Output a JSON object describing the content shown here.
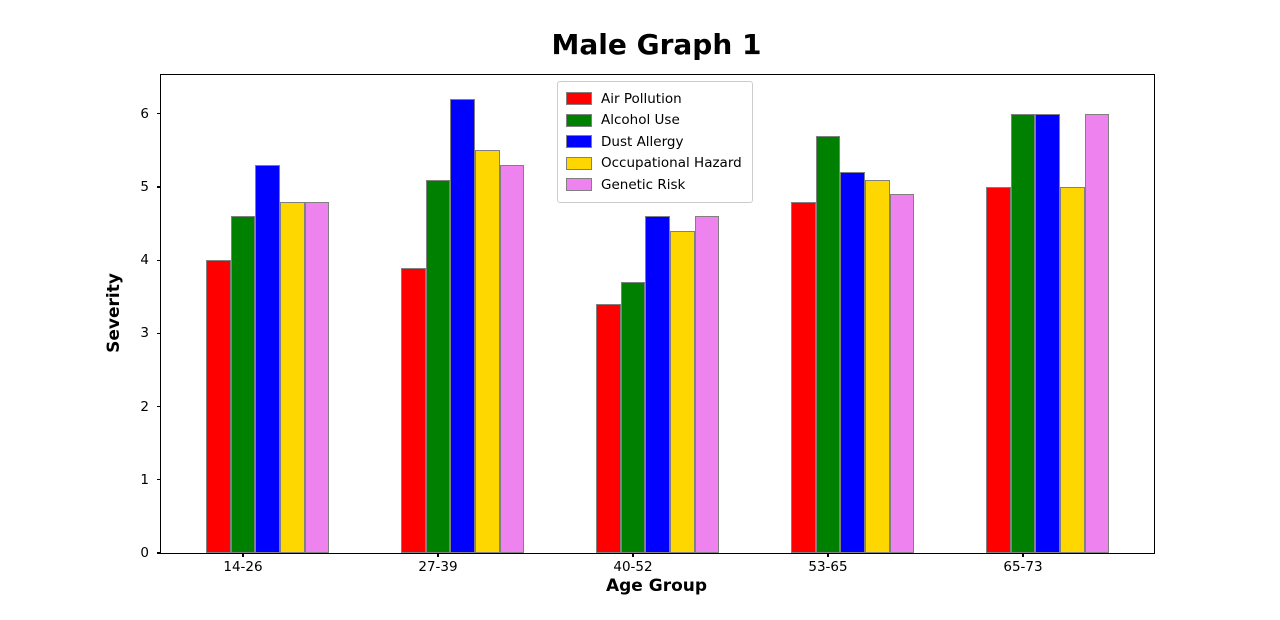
{
  "figure": {
    "background": "#ffffff",
    "plot_border_color": "#000000",
    "bar_edge_color": "#808080",
    "legend_border_color": "#cccccc"
  },
  "chart_data": {
    "type": "bar",
    "title": "Male Graph 1",
    "xlabel": "Age Group",
    "ylabel": "Severity",
    "categories": [
      "14-26",
      "27-39",
      "40-52",
      "53-65",
      "65-73"
    ],
    "series": [
      {
        "name": "Air Pollution",
        "color": "#ff0000",
        "values": [
          4.0,
          3.9,
          3.4,
          4.8,
          5.0
        ]
      },
      {
        "name": "Alcohol Use",
        "color": "#008000",
        "values": [
          4.6,
          5.1,
          3.7,
          5.7,
          6.0
        ]
      },
      {
        "name": "Dust Allergy",
        "color": "#0000ff",
        "values": [
          5.3,
          6.2,
          4.6,
          5.2,
          6.0
        ]
      },
      {
        "name": "Occupational Hazard",
        "color": "#ffd700",
        "values": [
          4.8,
          5.5,
          4.4,
          5.1,
          5.0
        ]
      },
      {
        "name": "Genetic Risk",
        "color": "#ee82ee",
        "values": [
          4.8,
          5.3,
          4.6,
          4.9,
          6.0
        ]
      }
    ],
    "ylim": [
      0,
      6.53
    ],
    "yticks": [
      0,
      1,
      2,
      3,
      4,
      5,
      6
    ],
    "grid": "off",
    "legend_position": "upper center"
  }
}
